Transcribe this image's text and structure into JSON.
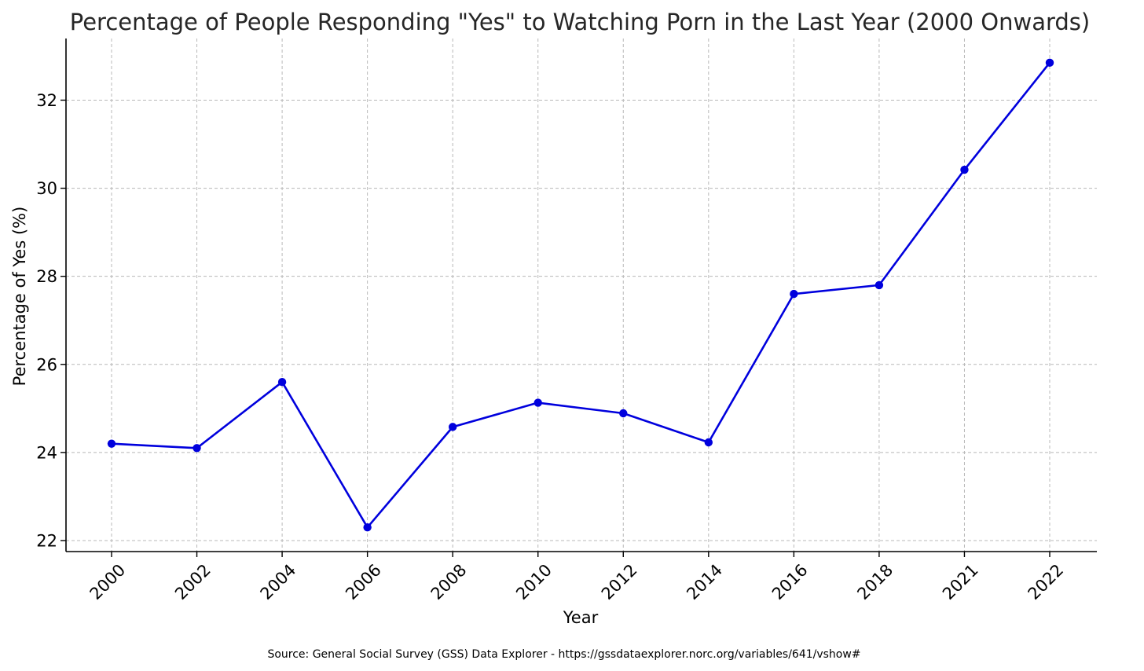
{
  "chart_data": {
    "type": "line",
    "title": "Percentage of People Responding \"Yes\" to Watching Porn in the Last Year (2000 Onwards)",
    "xlabel": "Year",
    "ylabel": "Percentage of Yes (%)",
    "source": "Source: General Social Survey (GSS) Data Explorer - https://gssdataexplorer.norc.org/variables/641/vshow#",
    "categories": [
      "2000",
      "2002",
      "2004",
      "2006",
      "2008",
      "2010",
      "2012",
      "2014",
      "2016",
      "2018",
      "2021",
      "2022"
    ],
    "series": [
      {
        "values": [
          24.2,
          24.1,
          25.6,
          22.3,
          24.58,
          25.13,
          24.89,
          24.23,
          27.6,
          27.8,
          30.42,
          32.85
        ],
        "color": "#0000dd",
        "marker": "circle"
      }
    ],
    "yticks": [
      22,
      24,
      26,
      28,
      30,
      32
    ],
    "ylim": [
      21.75,
      33.4
    ],
    "grid": true,
    "x_tick_rotation": -45
  }
}
